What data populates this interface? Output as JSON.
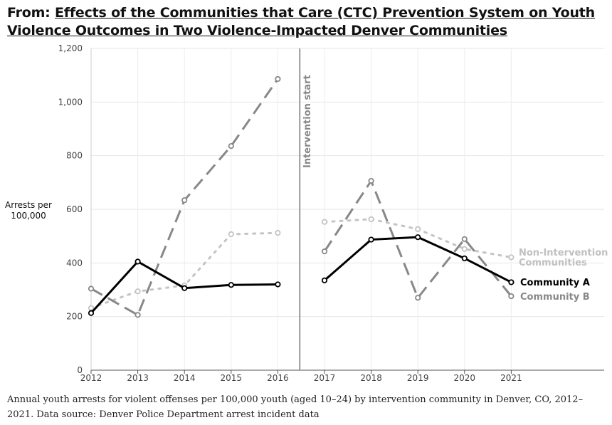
{
  "header": {
    "prefix": "From: ",
    "title_link": "Effects of the Communities that Care (CTC) Prevention System on Youth Violence Outcomes in Two Violence-Impacted Denver Communities"
  },
  "caption": "Annual youth arrests for violent offenses per 100,000 youth (aged 10–24) by intervention community in Denver, CO, 2012–2021. Data source: Denver Police Department arrest incident data",
  "chart_data": {
    "type": "line",
    "title": "",
    "ylabel_lines": [
      "Arrests per",
      "100,000"
    ],
    "xlabel": "",
    "x": [
      2012,
      2013,
      2014,
      2015,
      2016,
      2017,
      2018,
      2019,
      2020,
      2021
    ],
    "x_tick_labels": [
      "2012",
      "2013",
      "2014",
      "2015",
      "2016",
      "2017",
      "2018",
      "2019",
      "2020",
      "2021"
    ],
    "ylim": [
      0,
      1200
    ],
    "y_ticks": [
      0,
      200,
      400,
      600,
      800,
      1000,
      1200
    ],
    "y_tick_labels": [
      "0",
      "200",
      "400",
      "600",
      "800",
      "1,000",
      "1,200"
    ],
    "grid": true,
    "annotations": [
      {
        "label": "Intervention start",
        "x": 2016.5,
        "orientation": "vertical"
      }
    ],
    "series": [
      {
        "name": "Community A",
        "label_lines": [
          "Community A"
        ],
        "color": "#000000",
        "style": "solid",
        "segments": [
          {
            "x": [
              2012,
              2013,
              2014,
              2015,
              2016
            ],
            "y": [
              213,
              405,
              306,
              318,
              320
            ]
          },
          {
            "x": [
              2017,
              2018,
              2019,
              2020,
              2021
            ],
            "y": [
              335,
              487,
              496,
              417,
              328
            ]
          }
        ]
      },
      {
        "name": "Community B",
        "label_lines": [
          "Community B"
        ],
        "color": "#888888",
        "style": "dashed",
        "segments": [
          {
            "x": [
              2012,
              2013,
              2014,
              2015,
              2016
            ],
            "y": [
              304,
              206,
              634,
              836,
              1086
            ]
          },
          {
            "x": [
              2017,
              2018,
              2019,
              2020,
              2021
            ],
            "y": [
              443,
              706,
              270,
              489,
              276
            ]
          }
        ]
      },
      {
        "name": "Non-Intervention Communities",
        "label_lines": [
          "Non-Intervention",
          "Communities"
        ],
        "color": "#c4c4c4",
        "style": "dotted",
        "segments": [
          {
            "x": [
              2012,
              2013,
              2014,
              2015,
              2016
            ],
            "y": [
              232,
              294,
              316,
              507,
              512
            ]
          },
          {
            "x": [
              2017,
              2018,
              2019,
              2020,
              2021
            ],
            "y": [
              553,
              563,
              526,
              452,
              421
            ]
          }
        ]
      }
    ]
  }
}
